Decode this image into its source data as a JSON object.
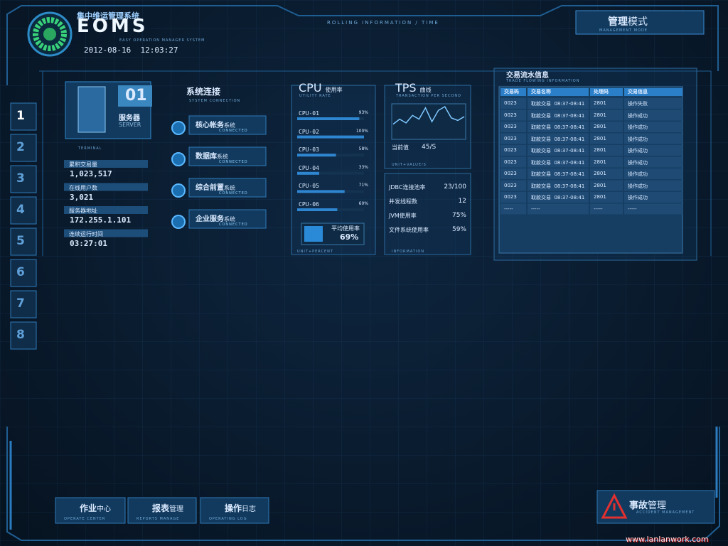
{
  "header": {
    "title_cn": "集中维运管理系统",
    "logo": "EOMS",
    "subtitle": "EASY OPERATION MANAGER SYSTEM",
    "datetime": "2012-08-16  12:03:27",
    "rolling": "ROLLING INFORMATION / TIME"
  },
  "mode": {
    "title_bold": "管理",
    "title": "模式",
    "sub": "MANAGEMENT MODE"
  },
  "tabs": [
    "1",
    "2",
    "3",
    "4",
    "5",
    "6",
    "7",
    "8"
  ],
  "server": {
    "number": "01",
    "label": "服务器",
    "label_en": "SERVER",
    "terminal": "TERMINAL",
    "stats": [
      {
        "label": "累积交易量",
        "value": "1,023,517"
      },
      {
        "label": "在线用户数",
        "value": "3,021"
      },
      {
        "label": "服务器地址",
        "value": "172.255.1.101"
      },
      {
        "label": "连续运行时间",
        "value": "03:27:01"
      }
    ]
  },
  "connections": {
    "title": "系统连接",
    "title_en": "SYSTEM CONNECTION",
    "items": [
      {
        "bold": "核心帐务",
        "name": "系统",
        "status": "CONNECTED"
      },
      {
        "bold": "数据库",
        "name": "系统",
        "status": "CONNECTED"
      },
      {
        "bold": "综合前置",
        "name": "系统",
        "status": "CONNECTED"
      },
      {
        "bold": "企业服务",
        "name": "系统",
        "status": "CONNECTED"
      }
    ]
  },
  "cpu": {
    "title": "CPU",
    "title_cn": "使用率",
    "sub": "UTILITY RATE",
    "rows": [
      {
        "name": "CPU-01",
        "value": 93,
        "label": "93%"
      },
      {
        "name": "CPU-02",
        "value": 100,
        "label": "100%"
      },
      {
        "name": "CPU-03",
        "value": 58,
        "label": "58%"
      },
      {
        "name": "CPU-04",
        "value": 33,
        "label": "33%"
      },
      {
        "name": "CPU-05",
        "value": 71,
        "label": "71%"
      },
      {
        "name": "CPU-06",
        "value": 60,
        "label": "60%"
      }
    ],
    "avg_label": "平均使用率",
    "avg_value": 69,
    "avg": "69%",
    "unit": "UNIT+PERCENT"
  },
  "tps": {
    "title": "TPS",
    "title_cn": "曲线",
    "sub": "TRANSACTION PER SECOND",
    "curve": [
      22,
      30,
      24,
      36,
      30,
      48,
      26,
      44,
      50,
      32,
      28,
      34
    ],
    "current_label": "当前值",
    "current": "45/S",
    "unit": "UNIT+VALUE/S"
  },
  "info": {
    "rows": [
      {
        "label": "JDBC连接池率",
        "value": "23/100"
      },
      {
        "label": "并发线程数",
        "value": "12"
      },
      {
        "label": "JVM使用率",
        "value": "75%"
      },
      {
        "label": "文件系统使用率",
        "value": "59%"
      }
    ],
    "footer": "INFORMATION"
  },
  "trade": {
    "title": "交易流水信息",
    "sub": "TRADE FLOWING INFORMATION",
    "columns": [
      "交易码",
      "交易名称",
      "处理码",
      "交易信息"
    ],
    "rows": [
      [
        "0023",
        "取款交易  08:37-08:41",
        "2801",
        "操作失败"
      ],
      [
        "0023",
        "取款交易  08:37-08:41",
        "2801",
        "操作成功"
      ],
      [
        "0023",
        "取款交易  08:37-08:41",
        "2801",
        "操作成功"
      ],
      [
        "0023",
        "取款交易  08:37-08:41",
        "2801",
        "操作成功"
      ],
      [
        "0023",
        "取款交易  08:37-08:41",
        "2801",
        "操作成功"
      ],
      [
        "0023",
        "取款交易  08:37-08:41",
        "2801",
        "操作成功"
      ],
      [
        "0023",
        "取款交易  08:37-08:41",
        "2801",
        "操作成功"
      ],
      [
        "0023",
        "取款交易  08:37-08:41",
        "2801",
        "操作成功"
      ],
      [
        "0023",
        "取款交易  08:37-08:41",
        "2801",
        "操作成功"
      ],
      [
        "-----",
        "-----",
        "-----",
        "-----"
      ]
    ]
  },
  "nav": [
    {
      "bold": "作业",
      "name": "中心",
      "en": "OPERATE CENTER"
    },
    {
      "bold": "报表",
      "name": "管理",
      "en": "REPORTS MANAGE"
    },
    {
      "bold": "操作",
      "name": "日志",
      "en": "OPERATING LOG"
    }
  ],
  "accident": {
    "bold": "事故",
    "name": "管理",
    "en": "ACCIDENT MANAGEMENT"
  },
  "watermark": "www.lanlanwork.com"
}
